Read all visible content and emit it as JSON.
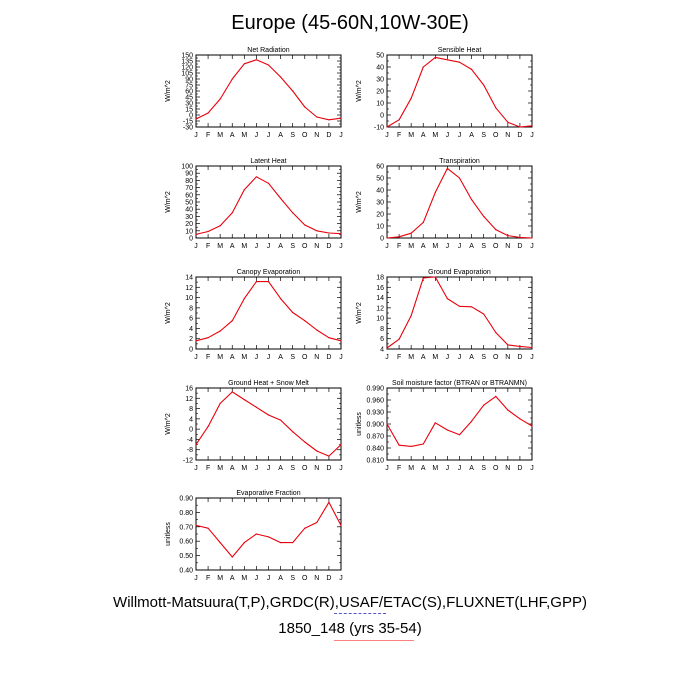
{
  "page": {
    "title": "Europe (45-60N,10W-30E)",
    "footer_line1": "Willmott-Matsuura(T,P),GRDC(R),USAF/ETAC(S),FLUXNET(LHF,GPP)",
    "footer_line2": "1850_148 (yrs 35-54)",
    "line_color": "#e8000b"
  },
  "chart_data": [
    {
      "type": "line",
      "title": "Net Radiation",
      "ylabel": "W/m^2",
      "categories": [
        "J",
        "F",
        "M",
        "A",
        "M",
        "J",
        "J",
        "A",
        "S",
        "O",
        "N",
        "D",
        "J"
      ],
      "ylim": [
        -30,
        150
      ],
      "yticks": [
        -30,
        -15,
        0,
        15,
        30,
        45,
        60,
        75,
        90,
        105,
        120,
        135,
        150
      ],
      "yticklabels": [
        "-30",
        "-15",
        "0",
        "15",
        "30",
        "45",
        "60",
        "75",
        "90",
        "105",
        "120",
        "135",
        "150"
      ],
      "values": [
        -10,
        5,
        40,
        90,
        128,
        138,
        125,
        95,
        60,
        20,
        -5,
        -12,
        -8
      ]
    },
    {
      "type": "line",
      "title": "Sensible Heat",
      "ylabel": "W/m^2",
      "categories": [
        "J",
        "F",
        "M",
        "A",
        "M",
        "J",
        "J",
        "A",
        "S",
        "O",
        "N",
        "D",
        "J"
      ],
      "ylim": [
        -10,
        50
      ],
      "yticks": [
        -10,
        0,
        10,
        20,
        30,
        40,
        50
      ],
      "yticklabels": [
        "-10",
        "0",
        "10",
        "20",
        "30",
        "40",
        "50"
      ],
      "values": [
        -10,
        -4,
        14,
        40,
        48,
        46,
        44,
        38,
        25,
        6,
        -6,
        -10,
        -9
      ]
    },
    {
      "type": "line",
      "title": "Latent Heat",
      "ylabel": "W/m^2",
      "categories": [
        "J",
        "F",
        "M",
        "A",
        "M",
        "J",
        "J",
        "A",
        "S",
        "O",
        "N",
        "D",
        "J"
      ],
      "ylim": [
        0,
        100
      ],
      "yticks": [
        0,
        10,
        20,
        30,
        40,
        50,
        60,
        70,
        80,
        90,
        100
      ],
      "yticklabels": [
        "0",
        "10",
        "20",
        "30",
        "40",
        "50",
        "60",
        "70",
        "80",
        "90",
        "100"
      ],
      "values": [
        5,
        9,
        17,
        35,
        67,
        85,
        76,
        55,
        35,
        18,
        10,
        7,
        6
      ]
    },
    {
      "type": "line",
      "title": "Transpiration",
      "ylabel": "W/m^2",
      "categories": [
        "J",
        "F",
        "M",
        "A",
        "M",
        "J",
        "J",
        "A",
        "S",
        "O",
        "N",
        "D",
        "J"
      ],
      "ylim": [
        0,
        60
      ],
      "yticks": [
        0,
        10,
        20,
        30,
        40,
        50,
        60
      ],
      "yticklabels": [
        "0",
        "10",
        "20",
        "30",
        "40",
        "50",
        "60"
      ],
      "values": [
        0,
        1,
        4,
        13,
        38,
        58,
        50,
        32,
        18,
        7,
        2,
        0.5,
        0
      ]
    },
    {
      "type": "line",
      "title": "Canopy Evaporation",
      "ylabel": "W/m^2",
      "categories": [
        "J",
        "F",
        "M",
        "A",
        "M",
        "J",
        "J",
        "A",
        "S",
        "O",
        "N",
        "D",
        "J"
      ],
      "ylim": [
        0,
        14
      ],
      "yticks": [
        0,
        2,
        4,
        6,
        8,
        10,
        12,
        14
      ],
      "yticklabels": [
        "0",
        "2",
        "4",
        "6",
        "8",
        "10",
        "12",
        "14"
      ],
      "values": [
        1.6,
        2.2,
        3.5,
        5.5,
        9.8,
        13.1,
        13.1,
        9.8,
        7.1,
        5.5,
        3.7,
        2.2,
        1.6
      ]
    },
    {
      "type": "line",
      "title": "Ground Evaporation",
      "ylabel": "W/m^2",
      "categories": [
        "J",
        "F",
        "M",
        "A",
        "M",
        "J",
        "J",
        "A",
        "S",
        "O",
        "N",
        "D",
        "J"
      ],
      "ylim": [
        4,
        18
      ],
      "yticks": [
        4,
        6,
        8,
        10,
        12,
        14,
        16,
        18
      ],
      "yticklabels": [
        "4",
        "6",
        "8",
        "10",
        "12",
        "14",
        "16",
        "18"
      ],
      "values": [
        4.2,
        5.9,
        10.5,
        17.8,
        18.0,
        13.8,
        12.3,
        12.2,
        10.8,
        7.2,
        4.8,
        4.5,
        4.3
      ]
    },
    {
      "type": "line",
      "title": "Ground Heat + Snow Melt",
      "ylabel": "W/m^2",
      "categories": [
        "J",
        "F",
        "M",
        "A",
        "M",
        "J",
        "J",
        "A",
        "S",
        "O",
        "N",
        "D",
        "J"
      ],
      "ylim": [
        -12,
        16
      ],
      "yticks": [
        -12,
        -8,
        -4,
        0,
        4,
        8,
        12,
        16
      ],
      "yticklabels": [
        "-12",
        "-8",
        "-4",
        "0",
        "4",
        "8",
        "12",
        "16"
      ],
      "values": [
        -6,
        1,
        10,
        14.5,
        11.5,
        8.5,
        5.5,
        3.5,
        -1,
        -5,
        -8.5,
        -10.5,
        -6
      ]
    },
    {
      "type": "line",
      "title": "Soil moisture factor (BTRAN or BTRANMN)",
      "ylabel": "unitless",
      "categories": [
        "J",
        "F",
        "M",
        "A",
        "M",
        "J",
        "J",
        "A",
        "S",
        "O",
        "N",
        "D",
        "J"
      ],
      "ylim": [
        0.81,
        0.99
      ],
      "yticks": [
        0.81,
        0.84,
        0.87,
        0.9,
        0.93,
        0.96,
        0.99
      ],
      "yticklabels": [
        "0.810",
        "0.840",
        "0.870",
        "0.900",
        "0.930",
        "0.960",
        "0.990"
      ],
      "values": [
        0.9,
        0.847,
        0.844,
        0.85,
        0.903,
        0.885,
        0.873,
        0.907,
        0.947,
        0.969,
        0.935,
        0.913,
        0.895
      ]
    },
    {
      "type": "line",
      "title": "Evaporative Fraction",
      "ylabel": "unitless",
      "categories": [
        "J",
        "F",
        "M",
        "A",
        "M",
        "J",
        "J",
        "A",
        "S",
        "O",
        "N",
        "D",
        "J"
      ],
      "ylim": [
        0.4,
        0.9
      ],
      "yticks": [
        0.4,
        0.5,
        0.6,
        0.7,
        0.8,
        0.9
      ],
      "yticklabels": [
        "0.40",
        "0.50",
        "0.60",
        "0.70",
        "0.80",
        "0.90"
      ],
      "values": [
        0.71,
        0.69,
        0.59,
        0.49,
        0.59,
        0.65,
        0.63,
        0.59,
        0.59,
        0.69,
        0.73,
        0.87,
        0.71
      ]
    }
  ]
}
